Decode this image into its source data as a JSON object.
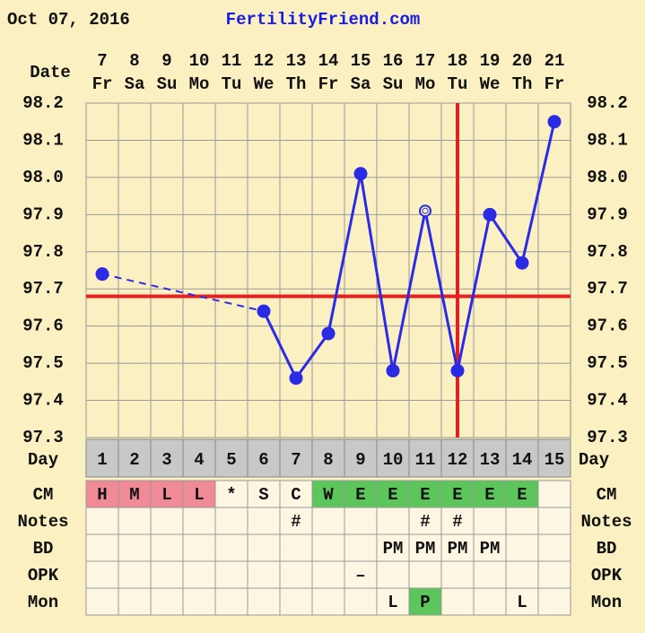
{
  "chart_data": {
    "type": "line",
    "header_date": "Oct 07, 2016",
    "site": "FertilityFriend.com",
    "date_label": "Date",
    "categories": [
      "7",
      "8",
      "9",
      "10",
      "11",
      "12",
      "13",
      "14",
      "15",
      "16",
      "17",
      "18",
      "19",
      "20",
      "21"
    ],
    "weekdays": [
      "Fr",
      "Sa",
      "Su",
      "Mo",
      "Tu",
      "We",
      "Th",
      "Fr",
      "Sa",
      "Su",
      "Mo",
      "Tu",
      "We",
      "Th",
      "Fr"
    ],
    "values": [
      97.74,
      null,
      null,
      null,
      null,
      97.64,
      97.46,
      97.58,
      98.01,
      97.48,
      97.91,
      97.48,
      97.9,
      97.77,
      98.15
    ],
    "marker_open": [
      false,
      false,
      false,
      false,
      false,
      false,
      false,
      false,
      false,
      false,
      true,
      false,
      false,
      false,
      false
    ],
    "color": "#2b2be6",
    "ylim": [
      97.3,
      98.2
    ],
    "yticks": [
      {
        "value": 97.3,
        "label": "97.3"
      },
      {
        "value": 97.4,
        "label": "97.4"
      },
      {
        "value": 97.5,
        "label": "97.5"
      },
      {
        "value": 97.6,
        "label": "97.6"
      },
      {
        "value": 97.7,
        "label": "97.7"
      },
      {
        "value": 97.8,
        "label": "97.8"
      },
      {
        "value": 97.9,
        "label": "97.9"
      },
      {
        "value": 98.0,
        "label": "98.0"
      },
      {
        "value": 98.1,
        "label": "98.1"
      },
      {
        "value": 98.2,
        "label": "98.2"
      }
    ],
    "grid": true,
    "coverline": 97.68,
    "ovulation_day": 12,
    "marker_color": "#e62020",
    "day_label": "Day",
    "days": [
      1,
      2,
      3,
      4,
      5,
      6,
      7,
      8,
      9,
      10,
      11,
      12,
      13,
      14,
      15
    ],
    "rows": [
      {
        "label": "CM",
        "cells": [
          "H",
          "M",
          "L",
          "L",
          "*",
          "S",
          "C",
          "W",
          "E",
          "E",
          "E",
          "E",
          "E",
          "E",
          null
        ],
        "colors": [
          "#f08a96",
          "#f08a96",
          "#f08a96",
          "#f08a96",
          null,
          null,
          null,
          "#5cc65c",
          "#5cc65c",
          "#5cc65c",
          "#5cc65c",
          "#5cc65c",
          "#5cc65c",
          "#5cc65c",
          null
        ]
      },
      {
        "label": "Notes",
        "cells": [
          null,
          null,
          null,
          null,
          null,
          null,
          "#",
          null,
          null,
          null,
          "#",
          "#",
          null,
          null,
          null
        ]
      },
      {
        "label": "BD",
        "cells": [
          null,
          null,
          null,
          null,
          null,
          null,
          null,
          null,
          null,
          "PM",
          "PM",
          "PM",
          "PM",
          null,
          null
        ]
      },
      {
        "label": "OPK",
        "cells": [
          null,
          null,
          null,
          null,
          null,
          null,
          null,
          null,
          "–",
          null,
          null,
          null,
          null,
          null,
          null
        ]
      },
      {
        "label": "Mon",
        "cells": [
          null,
          null,
          null,
          null,
          null,
          null,
          null,
          null,
          null,
          "L",
          "P",
          null,
          null,
          "L",
          null
        ],
        "colors": [
          null,
          null,
          null,
          null,
          null,
          null,
          null,
          null,
          null,
          null,
          "#5cc65c",
          null,
          null,
          null,
          null
        ]
      }
    ]
  }
}
